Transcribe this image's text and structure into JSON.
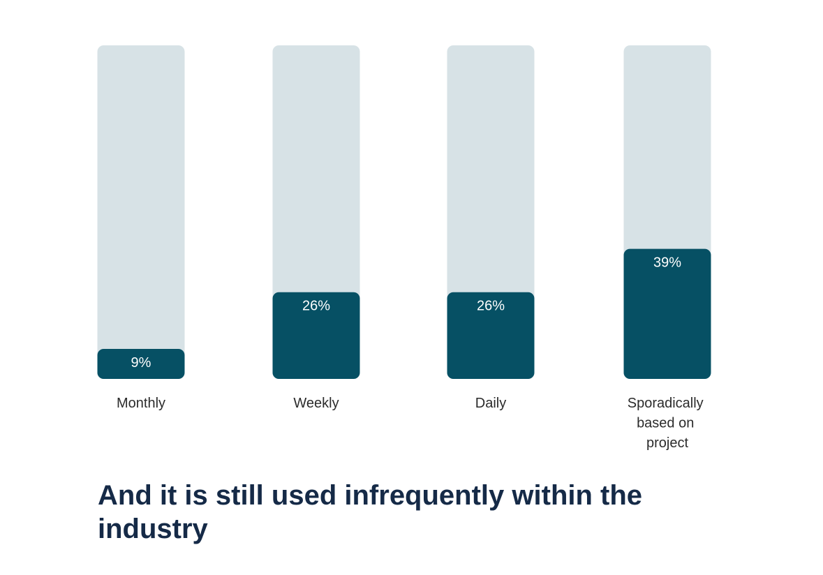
{
  "chart_data": {
    "type": "bar",
    "title": "And it is still used infrequently within the industry",
    "categories": [
      "Monthly",
      "Weekly",
      "Daily",
      "Sporadically based on project"
    ],
    "values": [
      9,
      26,
      26,
      39
    ],
    "value_labels": [
      "9%",
      "26%",
      "26%",
      "39%"
    ],
    "color": "#065064",
    "track_color": "#d7e2e6",
    "ylim": [
      0,
      100
    ]
  }
}
